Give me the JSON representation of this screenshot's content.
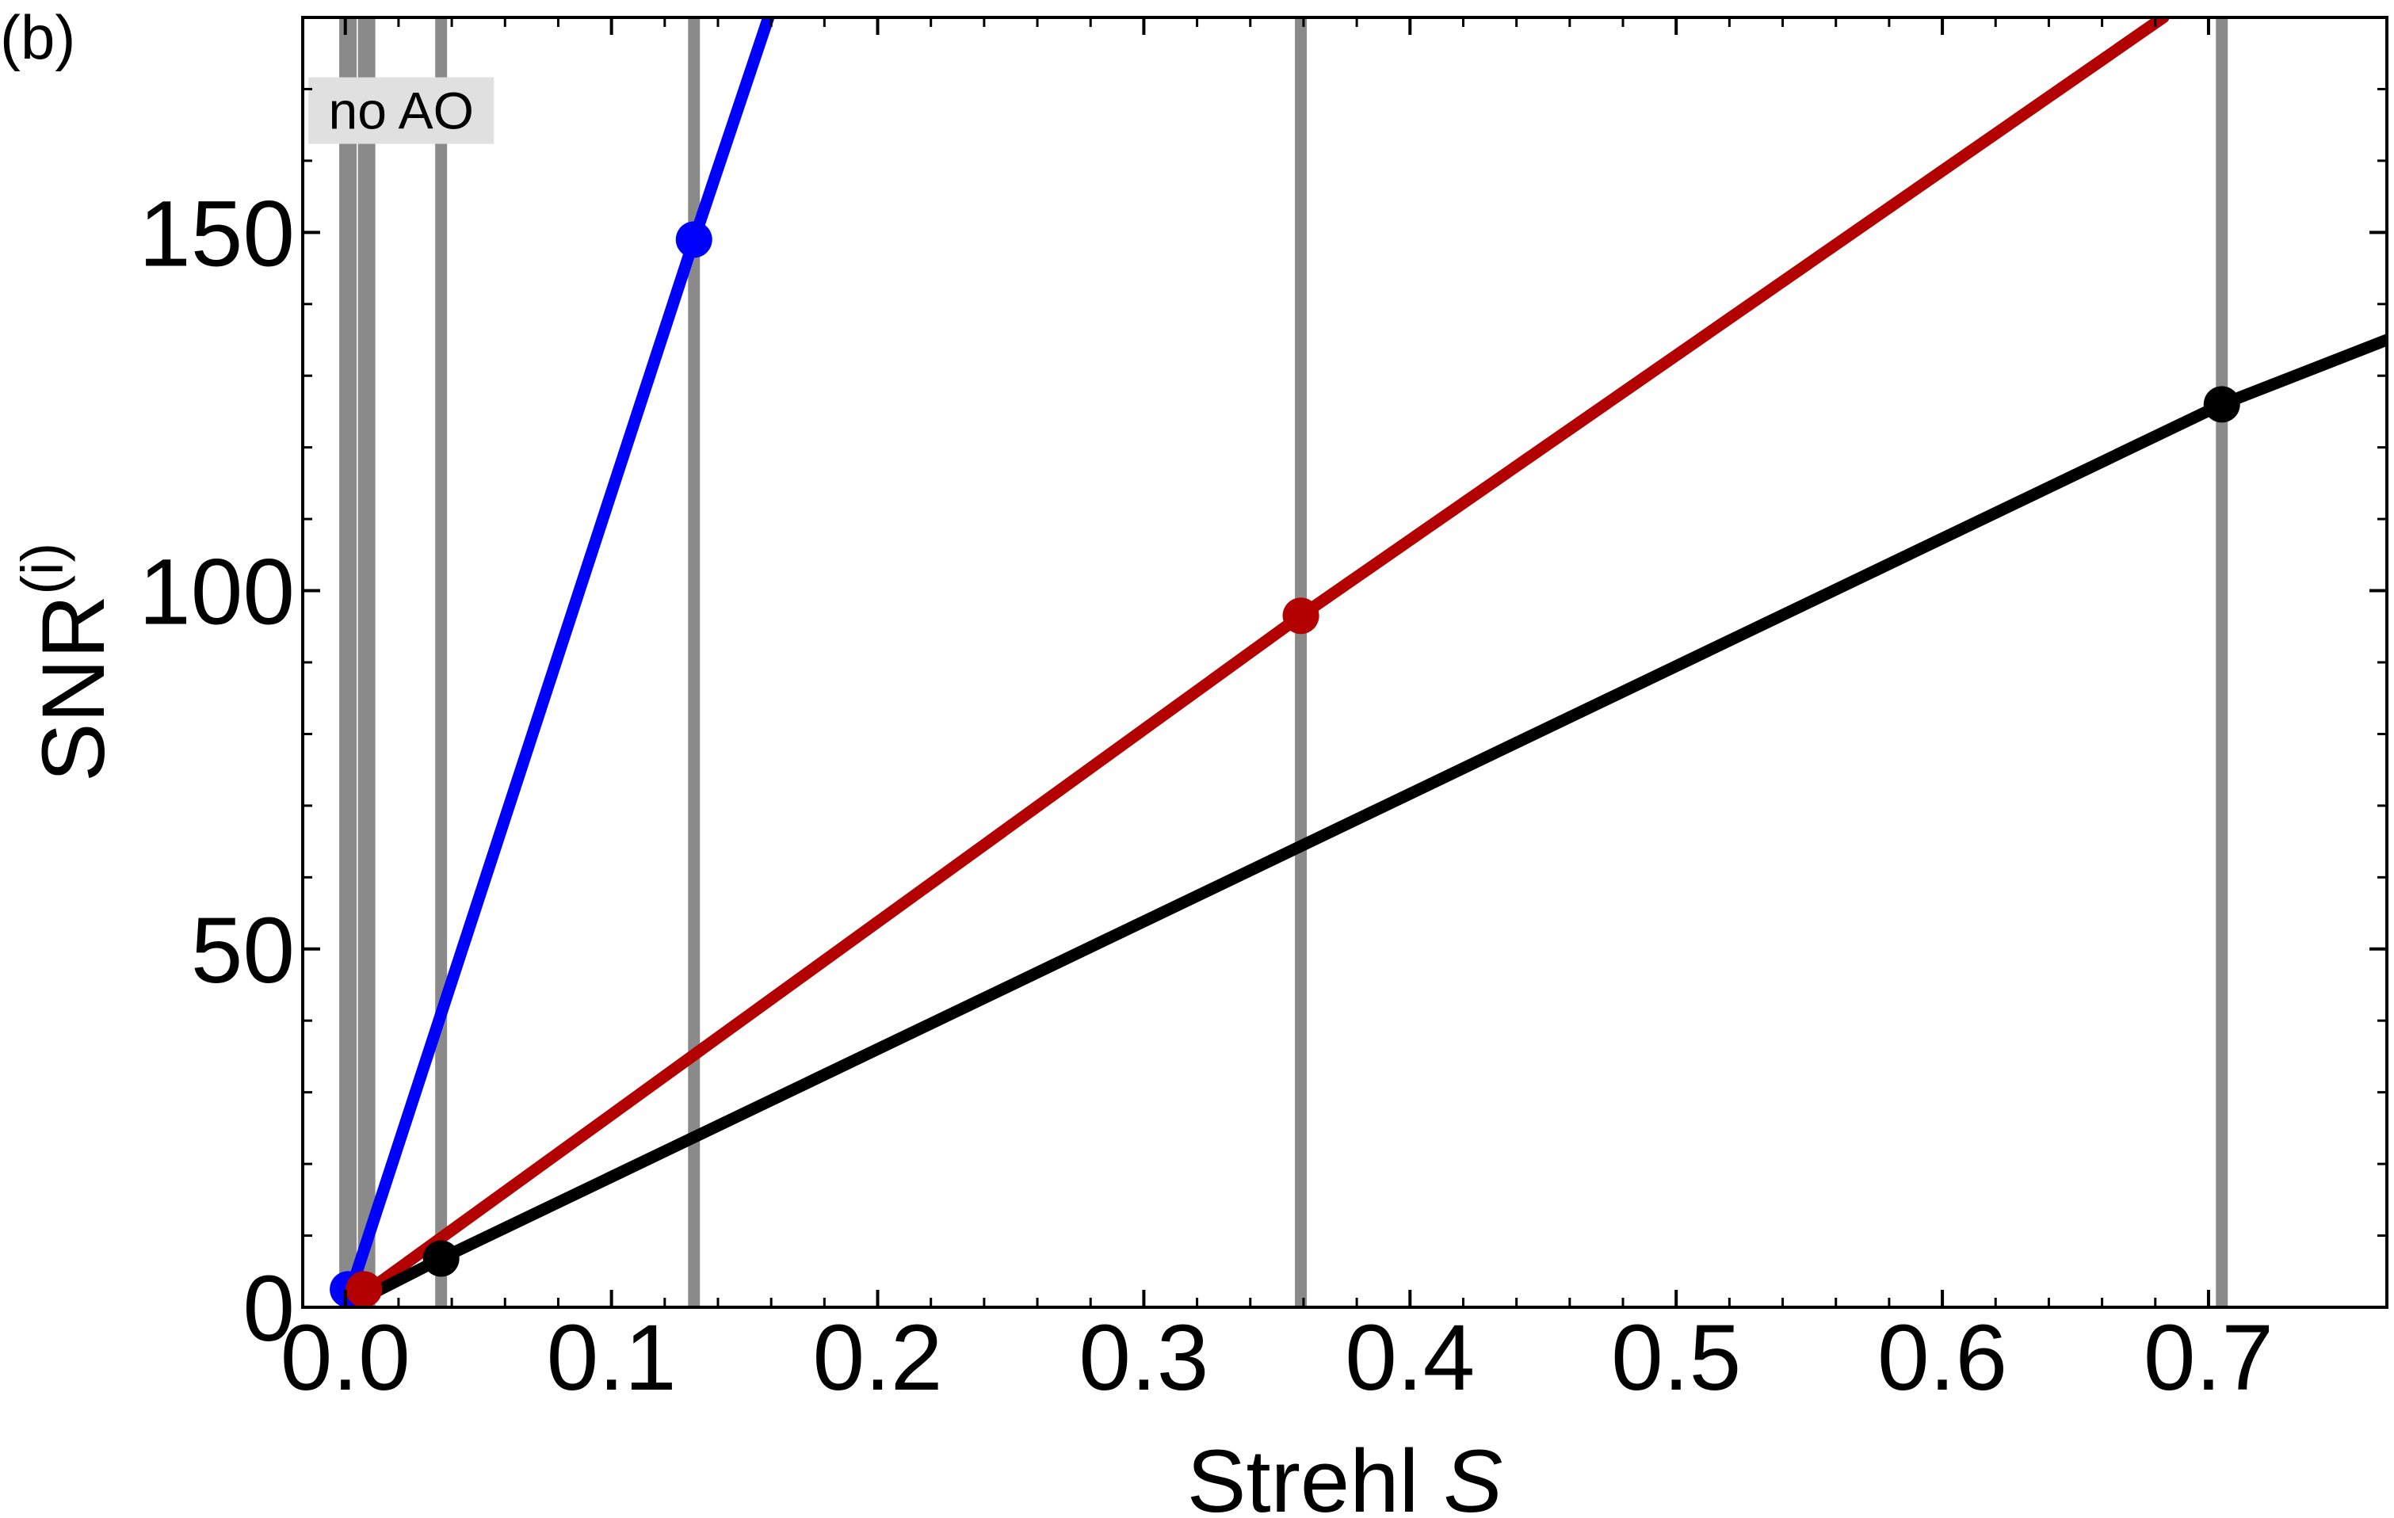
{
  "panel_label": "(b)",
  "chart_data": {
    "type": "line",
    "xlabel": "Strehl",
    "xlabel_var": "S",
    "ylabel": "SNR",
    "ylabel_sup": "(i)",
    "xlim": [
      -0.016,
      0.767
    ],
    "ylim": [
      0,
      180
    ],
    "xticks": [
      0.0,
      0.1,
      0.2,
      0.3,
      0.4,
      0.5,
      0.6,
      0.7
    ],
    "xtick_labels": [
      "0.0",
      "0.1",
      "0.2",
      "0.3",
      "0.4",
      "0.5",
      "0.6",
      "0.7"
    ],
    "yticks": [
      0,
      50,
      100,
      150
    ],
    "ytick_labels": [
      "0",
      "50",
      "100",
      "150"
    ],
    "grid": false,
    "annotation": {
      "text": "no AO",
      "x": 0.021,
      "y": 167
    },
    "vertical_lines": [
      {
        "x": 0.001,
        "color": "#8a8a8a",
        "weight": "thick"
      },
      {
        "x": 0.008,
        "color": "#8a8a8a",
        "weight": "thick"
      },
      {
        "x": 0.036,
        "color": "#8a8a8a",
        "weight": "normal"
      },
      {
        "x": 0.131,
        "color": "#8a8a8a",
        "weight": "normal"
      },
      {
        "x": 0.359,
        "color": "#8a8a8a",
        "weight": "normal"
      },
      {
        "x": 0.705,
        "color": "#8a8a8a",
        "weight": "normal"
      }
    ],
    "series": [
      {
        "color": "#0000ff",
        "x": [
          0.0,
          0.131,
          0.159
        ],
        "y": [
          0,
          149,
          180
        ],
        "markers": [
          {
            "x": 0.001,
            "y": 2.5
          },
          {
            "x": 0.131,
            "y": 149
          }
        ]
      },
      {
        "color": "#b30000",
        "x": [
          0.0,
          0.359,
          0.683
        ],
        "y": [
          0,
          96.5,
          180
        ],
        "markers": [
          {
            "x": 0.007,
            "y": 2.5
          },
          {
            "x": 0.359,
            "y": 96.5
          }
        ]
      },
      {
        "color": "#000000",
        "x": [
          0.0,
          0.036,
          0.705,
          0.767
        ],
        "y": [
          0,
          6.8,
          126,
          135
        ],
        "markers": [
          {
            "x": 0.036,
            "y": 6.8
          },
          {
            "x": 0.705,
            "y": 126
          }
        ]
      }
    ]
  }
}
